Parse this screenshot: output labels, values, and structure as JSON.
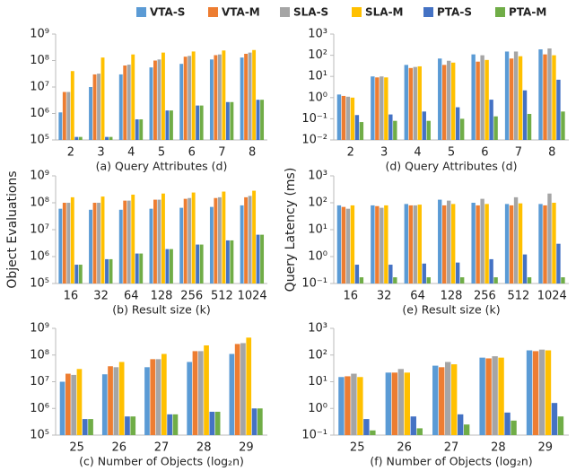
{
  "chart_data": [
    {
      "type": "bar",
      "log_scale": true,
      "subtitle": "(a) Query Attributes (d)",
      "categories": [
        "2",
        "3",
        "4",
        "5",
        "6",
        "7",
        "8"
      ],
      "ylim": [
        100000,
        1000000000
      ],
      "yticks": [
        {
          "value": 100000,
          "label": "10⁵"
        },
        {
          "value": 1000000,
          "label": "10⁶"
        },
        {
          "value": 10000000,
          "label": "10⁷"
        },
        {
          "value": 100000000,
          "label": "10⁸"
        },
        {
          "value": 1000000000,
          "label": "10⁹"
        }
      ],
      "series": [
        {
          "name": "VTA-S",
          "color": "#5b9bd5",
          "values": [
            1100000,
            10000000,
            30000000,
            55000000,
            75000000,
            110000000,
            130000000
          ]
        },
        {
          "name": "VTA-M",
          "color": "#ed7d31",
          "values": [
            6500000,
            30000000,
            65000000,
            100000000,
            140000000,
            160000000,
            180000000
          ]
        },
        {
          "name": "SLA-S",
          "color": "#a5a5a5",
          "values": [
            6500000,
            32000000,
            70000000,
            110000000,
            150000000,
            170000000,
            200000000
          ]
        },
        {
          "name": "SLA-M",
          "color": "#ffc000",
          "values": [
            40000000,
            130000000,
            170000000,
            200000000,
            220000000,
            240000000,
            250000000
          ]
        },
        {
          "name": "PTA-S",
          "color": "#4472c4",
          "values": [
            130000,
            130000,
            600000,
            1300000,
            2000000,
            2700000,
            3300000
          ]
        },
        {
          "name": "PTA-M",
          "color": "#70ad47",
          "values": [
            130000,
            130000,
            600000,
            1300000,
            2000000,
            2700000,
            3300000
          ]
        }
      ]
    },
    {
      "type": "bar",
      "log_scale": true,
      "subtitle": "(b) Result size (k)",
      "ylabel": "Object Evaluations",
      "categories": [
        "16",
        "32",
        "64",
        "128",
        "256",
        "512",
        "1024"
      ],
      "ylim": [
        100000,
        1000000000
      ],
      "yticks": [
        {
          "value": 100000,
          "label": "10⁵"
        },
        {
          "value": 1000000,
          "label": "10⁶"
        },
        {
          "value": 10000000,
          "label": "10⁷"
        },
        {
          "value": 100000000,
          "label": "10⁸"
        },
        {
          "value": 1000000000,
          "label": "10⁹"
        }
      ],
      "series": [
        {
          "name": "VTA-S",
          "color": "#5b9bd5",
          "values": [
            60000000,
            55000000,
            55000000,
            60000000,
            65000000,
            70000000,
            80000000
          ]
        },
        {
          "name": "VTA-M",
          "color": "#ed7d31",
          "values": [
            100000000,
            100000000,
            120000000,
            130000000,
            140000000,
            150000000,
            160000000
          ]
        },
        {
          "name": "SLA-S",
          "color": "#a5a5a5",
          "values": [
            100000000,
            100000000,
            120000000,
            130000000,
            150000000,
            160000000,
            180000000
          ]
        },
        {
          "name": "SLA-M",
          "color": "#ffc000",
          "values": [
            160000000,
            170000000,
            200000000,
            220000000,
            240000000,
            260000000,
            280000000
          ]
        },
        {
          "name": "PTA-S",
          "color": "#4472c4",
          "values": [
            500000,
            800000,
            1300000,
            1900000,
            2800000,
            4000000,
            6500000
          ]
        },
        {
          "name": "PTA-M",
          "color": "#70ad47",
          "values": [
            500000,
            800000,
            1300000,
            1900000,
            2800000,
            4000000,
            6500000
          ]
        }
      ]
    },
    {
      "type": "bar",
      "log_scale": true,
      "subtitle": "(c) Number of Objects (log₂n)",
      "categories": [
        "25",
        "26",
        "27",
        "28",
        "29"
      ],
      "ylim": [
        100000,
        1000000000
      ],
      "yticks": [
        {
          "value": 100000,
          "label": "10⁵"
        },
        {
          "value": 1000000,
          "label": "10⁶"
        },
        {
          "value": 10000000,
          "label": "10⁷"
        },
        {
          "value": 100000000,
          "label": "10⁸"
        },
        {
          "value": 1000000000,
          "label": "10⁹"
        }
      ],
      "series": [
        {
          "name": "VTA-S",
          "color": "#5b9bd5",
          "values": [
            10000000,
            19000000,
            35000000,
            55000000,
            110000000
          ]
        },
        {
          "name": "VTA-M",
          "color": "#ed7d31",
          "values": [
            20000000,
            38000000,
            70000000,
            140000000,
            260000000
          ]
        },
        {
          "name": "SLA-S",
          "color": "#a5a5a5",
          "values": [
            18000000,
            35000000,
            70000000,
            140000000,
            280000000
          ]
        },
        {
          "name": "SLA-M",
          "color": "#ffc000",
          "values": [
            30000000,
            55000000,
            110000000,
            230000000,
            450000000
          ]
        },
        {
          "name": "PTA-S",
          "color": "#4472c4",
          "values": [
            400000,
            500000,
            600000,
            750000,
            1000000
          ]
        },
        {
          "name": "PTA-M",
          "color": "#70ad47",
          "values": [
            400000,
            500000,
            600000,
            750000,
            1000000
          ]
        }
      ]
    },
    {
      "type": "bar",
      "log_scale": true,
      "subtitle": "(d) Query Attributes (d)",
      "categories": [
        "2",
        "3",
        "4",
        "5",
        "6",
        "7",
        "8"
      ],
      "ylim": [
        0.01,
        1000
      ],
      "yticks": [
        {
          "value": 0.01,
          "label": "10⁻²"
        },
        {
          "value": 0.1,
          "label": "10⁻¹"
        },
        {
          "value": 1,
          "label": "10⁰"
        },
        {
          "value": 10,
          "label": "10¹"
        },
        {
          "value": 100,
          "label": "10²"
        },
        {
          "value": 1000,
          "label": "10³"
        }
      ],
      "series": [
        {
          "name": "VTA-S",
          "color": "#5b9bd5",
          "values": [
            1.4,
            10,
            35,
            70,
            110,
            150,
            190
          ]
        },
        {
          "name": "VTA-M",
          "color": "#ed7d31",
          "values": [
            1.2,
            9,
            25,
            35,
            50,
            70,
            110
          ]
        },
        {
          "name": "SLA-S",
          "color": "#a5a5a5",
          "values": [
            1.1,
            10,
            28,
            55,
            100,
            150,
            210
          ]
        },
        {
          "name": "SLA-M",
          "color": "#ffc000",
          "values": [
            1.0,
            9,
            30,
            45,
            60,
            90,
            100
          ]
        },
        {
          "name": "PTA-S",
          "color": "#4472c4",
          "values": [
            0.15,
            0.16,
            0.22,
            0.35,
            0.8,
            2.2,
            7
          ]
        },
        {
          "name": "PTA-M",
          "color": "#70ad47",
          "values": [
            0.07,
            0.08,
            0.08,
            0.1,
            0.13,
            0.17,
            0.22
          ]
        }
      ]
    },
    {
      "type": "bar",
      "log_scale": true,
      "subtitle": "(e) Result size (k)",
      "ylabel": "Query Latency (ms)",
      "categories": [
        "16",
        "32",
        "64",
        "128",
        "256",
        "512",
        "1024"
      ],
      "ylim": [
        0.1,
        1000
      ],
      "yticks": [
        {
          "value": 0.1,
          "label": "10⁻¹"
        },
        {
          "value": 1,
          "label": "10⁰"
        },
        {
          "value": 10,
          "label": "10¹"
        },
        {
          "value": 100,
          "label": "10²"
        },
        {
          "value": 1000,
          "label": "10³"
        }
      ],
      "series": [
        {
          "name": "VTA-S",
          "color": "#5b9bd5",
          "values": [
            80,
            80,
            90,
            130,
            100,
            90,
            90
          ]
        },
        {
          "name": "VTA-M",
          "color": "#ed7d31",
          "values": [
            70,
            75,
            80,
            80,
            80,
            80,
            80
          ]
        },
        {
          "name": "SLA-S",
          "color": "#a5a5a5",
          "values": [
            60,
            65,
            80,
            120,
            140,
            160,
            220
          ]
        },
        {
          "name": "SLA-M",
          "color": "#ffc000",
          "values": [
            80,
            80,
            85,
            90,
            90,
            95,
            100
          ]
        },
        {
          "name": "PTA-S",
          "color": "#4472c4",
          "values": [
            0.5,
            0.5,
            0.55,
            0.6,
            0.8,
            1.2,
            3
          ]
        },
        {
          "name": "PTA-M",
          "color": "#70ad47",
          "values": [
            0.17,
            0.17,
            0.17,
            0.17,
            0.17,
            0.17,
            0.17
          ]
        }
      ]
    },
    {
      "type": "bar",
      "log_scale": true,
      "subtitle": "(f) Number of Objects (log₂n)",
      "categories": [
        "25",
        "26",
        "27",
        "28",
        "29"
      ],
      "ylim": [
        0.1,
        1000
      ],
      "yticks": [
        {
          "value": 0.1,
          "label": "10⁻¹"
        },
        {
          "value": 1,
          "label": "10⁰"
        },
        {
          "value": 10,
          "label": "10¹"
        },
        {
          "value": 100,
          "label": "10²"
        },
        {
          "value": 1000,
          "label": "10³"
        }
      ],
      "series": [
        {
          "name": "VTA-S",
          "color": "#5b9bd5",
          "values": [
            15,
            22,
            40,
            80,
            150
          ]
        },
        {
          "name": "VTA-M",
          "color": "#ed7d31",
          "values": [
            16,
            22,
            35,
            75,
            140
          ]
        },
        {
          "name": "SLA-S",
          "color": "#a5a5a5",
          "values": [
            20,
            30,
            55,
            90,
            160
          ]
        },
        {
          "name": "SLA-M",
          "color": "#ffc000",
          "values": [
            15,
            22,
            45,
            80,
            150
          ]
        },
        {
          "name": "PTA-S",
          "color": "#4472c4",
          "values": [
            0.4,
            0.5,
            0.6,
            0.7,
            1.6
          ]
        },
        {
          "name": "PTA-M",
          "color": "#70ad47",
          "values": [
            0.15,
            0.18,
            0.25,
            0.35,
            0.5
          ]
        }
      ]
    }
  ]
}
